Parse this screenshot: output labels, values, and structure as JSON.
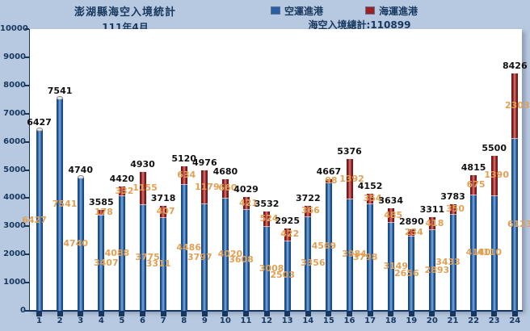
{
  "header": {
    "title": "澎湖縣海空入境統計",
    "subtitle": "111年4月",
    "grand_total": "海空入境總計:110899"
  },
  "legend": [
    {
      "label": "空運進港",
      "color": "#2a5fa5"
    },
    {
      "label": "海運進港",
      "color": "#a02020"
    }
  ],
  "colors": {
    "background": "#b7c9e0",
    "plot_background": "#ffffff",
    "axis_ink": "#17375e",
    "air_bar": "#2466b4",
    "sea_bar": "#a51e1e",
    "data_label": "#e2a055",
    "total_label": "#111111"
  },
  "chart_data": {
    "type": "bar",
    "stacked": true,
    "title": "澎湖縣海空入境統計",
    "subtitle": "111年4月",
    "annotation": "海空入境總計:110899",
    "xlabel": "",
    "ylabel": "",
    "ylim": [
      0,
      10000
    ],
    "ytick_step": 1000,
    "grid": false,
    "legend_position": "top-right",
    "categories": [
      "1",
      "2",
      "3",
      "4",
      "5",
      "6",
      "7",
      "8",
      "9",
      "10",
      "11",
      "12",
      "13",
      "14",
      "15",
      "16",
      "17",
      "18",
      "19",
      "20",
      "21",
      "22",
      "23",
      "24"
    ],
    "series": [
      {
        "name": "空運進港",
        "values": [
          6427,
          7541,
          4740,
          3407,
          4088,
          3775,
          3311,
          4486,
          3797,
          4020,
          3608,
          3008,
          2503,
          3356,
          4569,
          3984,
          3798,
          3149,
          2656,
          2893,
          3433,
          4140,
          4110,
          6123
        ]
      },
      {
        "name": "海運進港",
        "values": [
          0,
          0,
          0,
          178,
          332,
          1155,
          407,
          634,
          1179,
          660,
          421,
          524,
          422,
          366,
          98,
          1392,
          354,
          485,
          234,
          418,
          350,
          675,
          1390,
          2303
        ]
      }
    ],
    "totals": [
      6427,
      7541,
      4740,
      3585,
      4420,
      4930,
      3718,
      5120,
      4976,
      4680,
      4029,
      3532,
      2925,
      3722,
      4667,
      5376,
      4152,
      3634,
      2890,
      3311,
      3783,
      4815,
      5500,
      8426
    ]
  }
}
